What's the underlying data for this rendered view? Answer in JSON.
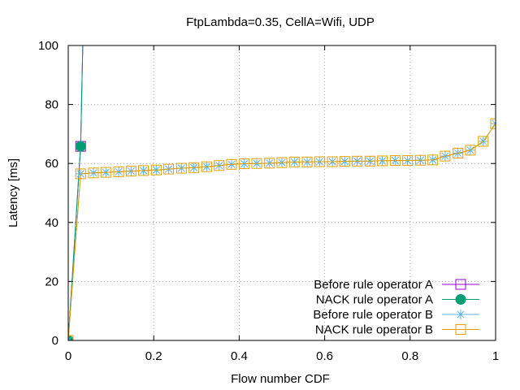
{
  "chart_data": {
    "type": "line",
    "title": "FtpLambda=0.35, CellA=Wifi, UDP",
    "xlabel": "Flow number CDF",
    "ylabel": "Latency [ms]",
    "xlim": [
      0,
      1
    ],
    "ylim": [
      0,
      100
    ],
    "xticks": [
      "0",
      "0.2",
      "0.4",
      "0.6",
      "0.8",
      "1"
    ],
    "yticks": [
      "0",
      "20",
      "40",
      "60",
      "80",
      "100"
    ],
    "grid": true,
    "legend_position": "bottom-right",
    "series": [
      {
        "name": "Before rule operator A",
        "marker": "open-square",
        "color": "#9400d3",
        "x": [
          0,
          0.029,
          0.034
        ],
        "y": [
          0,
          65.8,
          100
        ]
      },
      {
        "name": "NACK rule operator A",
        "marker": "filled-circle",
        "color": "#009e73",
        "x": [
          0,
          0.029,
          0.034
        ],
        "y": [
          0,
          65.8,
          100
        ]
      },
      {
        "name": "Before rule operator B",
        "marker": "asterisk",
        "color": "#56b4e9",
        "x": [
          0,
          0.029,
          0.059,
          0.088,
          0.118,
          0.147,
          0.176,
          0.206,
          0.235,
          0.265,
          0.294,
          0.324,
          0.353,
          0.382,
          0.412,
          0.441,
          0.471,
          0.5,
          0.529,
          0.559,
          0.588,
          0.618,
          0.647,
          0.676,
          0.706,
          0.735,
          0.765,
          0.794,
          0.824,
          0.853,
          0.882,
          0.912,
          0.941,
          0.971,
          1.0
        ],
        "y": [
          0,
          56.5,
          56.8,
          57.0,
          57.2,
          57.4,
          57.6,
          57.8,
          58.1,
          58.4,
          58.6,
          58.9,
          59.3,
          59.7,
          59.9,
          60.0,
          60.1,
          60.3,
          60.5,
          60.5,
          60.6,
          60.6,
          60.7,
          60.8,
          60.8,
          60.9,
          61.0,
          61.0,
          61.1,
          61.2,
          62.5,
          63.5,
          64.5,
          67.5,
          73.5
        ]
      },
      {
        "name": "NACK rule operator B",
        "marker": "open-square",
        "color": "#e69f00",
        "x": [
          0,
          0.029,
          0.059,
          0.088,
          0.118,
          0.147,
          0.176,
          0.206,
          0.235,
          0.265,
          0.294,
          0.324,
          0.353,
          0.382,
          0.412,
          0.441,
          0.471,
          0.5,
          0.529,
          0.559,
          0.588,
          0.618,
          0.647,
          0.676,
          0.706,
          0.735,
          0.765,
          0.794,
          0.824,
          0.853,
          0.882,
          0.912,
          0.941,
          0.971,
          1.0
        ],
        "y": [
          0,
          56.5,
          56.8,
          57.0,
          57.2,
          57.4,
          57.6,
          57.8,
          58.1,
          58.4,
          58.6,
          58.9,
          59.3,
          59.7,
          59.9,
          60.0,
          60.1,
          60.3,
          60.5,
          60.5,
          60.6,
          60.6,
          60.7,
          60.8,
          60.8,
          60.9,
          61.0,
          61.0,
          61.1,
          61.2,
          62.5,
          63.5,
          64.5,
          67.5,
          73.5
        ]
      }
    ]
  }
}
